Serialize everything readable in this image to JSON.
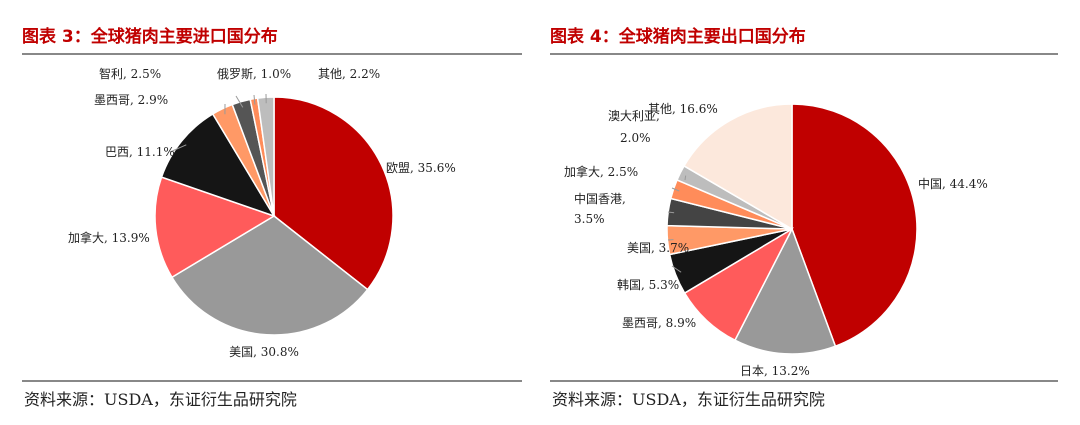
{
  "chart_data": [
    {
      "type": "pie",
      "title": "图表 3：全球猪肉主要进口国分布",
      "source": "资料来源：USDA，东证衍生品研究院",
      "slices": [
        {
          "name": "欧盟",
          "value": 35.6,
          "label": "欧盟, 35.6%",
          "color": "#c00000"
        },
        {
          "name": "美国",
          "value": 30.8,
          "label": "美国, 30.8%",
          "color": "#999999"
        },
        {
          "name": "加拿大",
          "value": 13.9,
          "label": "加拿大, 13.9%",
          "color": "#ff5b5b"
        },
        {
          "name": "巴西",
          "value": 11.1,
          "label": "巴西, 11.1%",
          "color": "#151515"
        },
        {
          "name": "墨西哥",
          "value": 2.9,
          "label": "墨西哥, 2.9%",
          "color": "#ff9966"
        },
        {
          "name": "智利",
          "value": 2.5,
          "label": "智利, 2.5%",
          "color": "#555555"
        },
        {
          "name": "俄罗斯",
          "value": 1.0,
          "label": "俄罗斯, 1.0%",
          "color": "#ff8c5a"
        },
        {
          "name": "其他",
          "value": 2.2,
          "label": "其他, 2.2%",
          "color": "#bdbdbd"
        }
      ]
    },
    {
      "type": "pie",
      "title": "图表 4：全球猪肉主要出口国分布",
      "source": "资料来源：USDA，东证衍生品研究院",
      "slices": [
        {
          "name": "中国",
          "value": 44.4,
          "label": "中国, 44.4%",
          "color": "#c00000"
        },
        {
          "name": "日本",
          "value": 13.2,
          "label": "日本, 13.2%",
          "color": "#999999"
        },
        {
          "name": "墨西哥",
          "value": 8.9,
          "label": "墨西哥, 8.9%",
          "color": "#ff5b5b"
        },
        {
          "name": "韩国",
          "value": 5.3,
          "label": "韩国, 5.3%",
          "color": "#151515"
        },
        {
          "name": "美国",
          "value": 3.7,
          "label": "美国, 3.7%",
          "color": "#ff9966"
        },
        {
          "name": "中国香港",
          "value": 3.5,
          "label": "中国香港, 3.5%",
          "color": "#444444"
        },
        {
          "name": "加拿大",
          "value": 2.5,
          "label": "加拿大, 2.5%",
          "color": "#ff8c5a"
        },
        {
          "name": "澳大利亚",
          "value": 2.0,
          "label": "澳大利亚, 2.0%",
          "color": "#bdbdbd"
        },
        {
          "name": "其他",
          "value": 16.6,
          "label": "其他, 16.6%",
          "color": "#fce8dc"
        }
      ]
    }
  ]
}
